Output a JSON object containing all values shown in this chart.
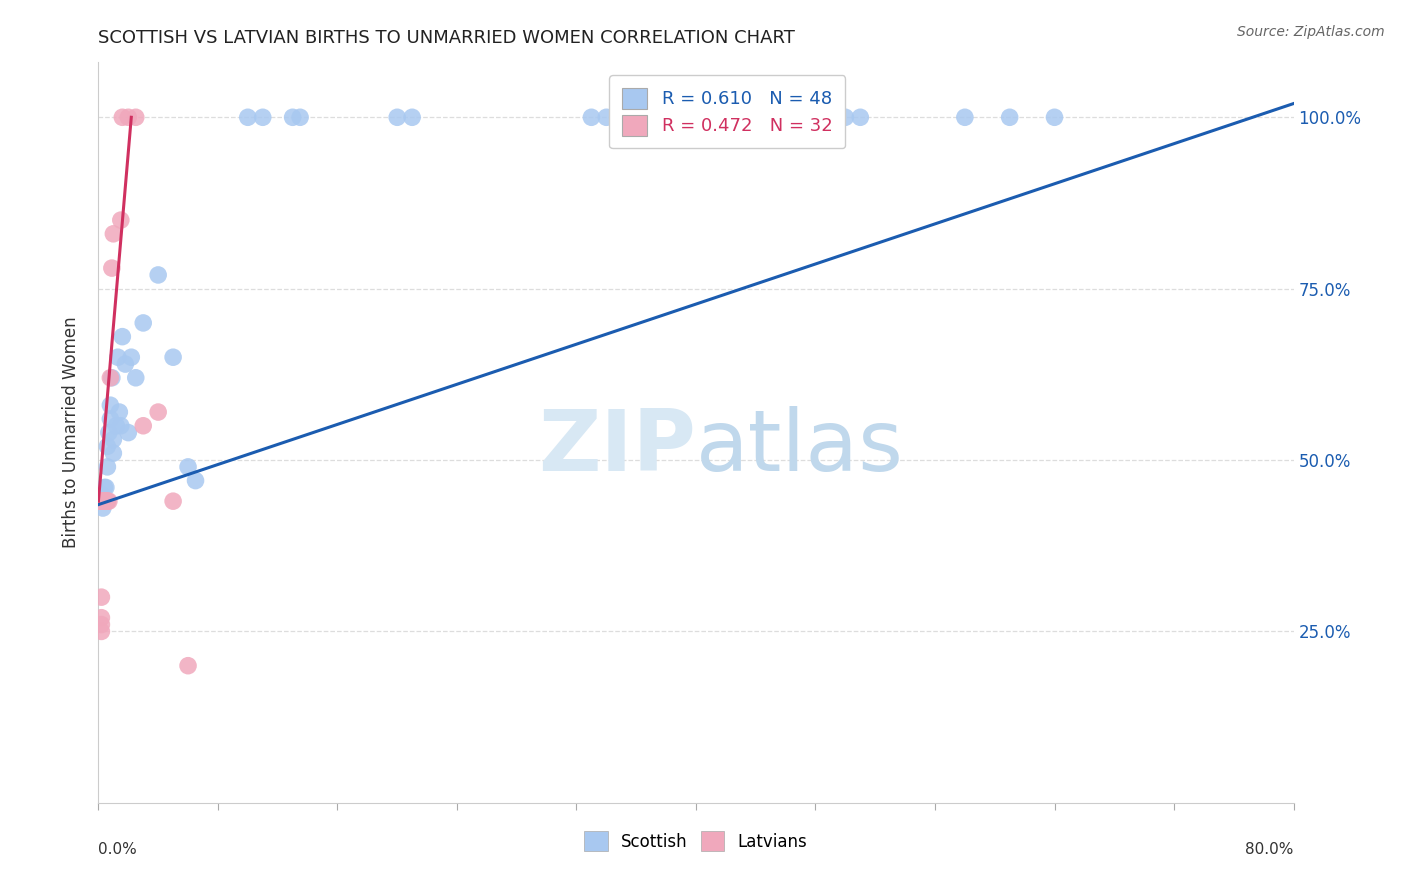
{
  "title": "SCOTTISH VS LATVIAN BIRTHS TO UNMARRIED WOMEN CORRELATION CHART",
  "source": "Source: ZipAtlas.com",
  "ylabel": "Births to Unmarried Women",
  "ytick_labels": [
    "100.0%",
    "75.0%",
    "50.0%",
    "25.0%"
  ],
  "ytick_values": [
    1.0,
    0.75,
    0.5,
    0.25
  ],
  "legend_labels": [
    "Scottish",
    "Latvians"
  ],
  "R_scottish": 0.61,
  "N_scottish": 48,
  "R_latvian": 0.472,
  "N_latvian": 32,
  "color_scottish": "#A8C8F0",
  "color_latvian": "#F0A8BC",
  "color_scottish_line": "#1B5CB0",
  "color_latvian_line": "#D03060",
  "background_color": "#FFFFFF",
  "grid_color": "#DDDDDD",
  "xlim": [
    0.0,
    0.8
  ],
  "ylim": [
    0.0,
    1.08
  ],
  "scottish_x": [
    0.001,
    0.001,
    0.002,
    0.002,
    0.002,
    0.003,
    0.003,
    0.003,
    0.004,
    0.004,
    0.005,
    0.005,
    0.006,
    0.006,
    0.007,
    0.008,
    0.008,
    0.009,
    0.01,
    0.01,
    0.012,
    0.013,
    0.014,
    0.015,
    0.016,
    0.018,
    0.02,
    0.022,
    0.025,
    0.03,
    0.04,
    0.05,
    0.06,
    0.065,
    0.1,
    0.11,
    0.13,
    0.135,
    0.2,
    0.21,
    0.33,
    0.34,
    0.49,
    0.5,
    0.51,
    0.58,
    0.61,
    0.64
  ],
  "scottish_y": [
    0.44,
    0.44,
    0.44,
    0.44,
    0.45,
    0.44,
    0.44,
    0.43,
    0.44,
    0.46,
    0.44,
    0.46,
    0.49,
    0.52,
    0.54,
    0.56,
    0.58,
    0.62,
    0.51,
    0.53,
    0.55,
    0.65,
    0.57,
    0.55,
    0.68,
    0.64,
    0.54,
    0.65,
    0.62,
    0.7,
    0.77,
    0.65,
    0.49,
    0.47,
    1.0,
    1.0,
    1.0,
    1.0,
    1.0,
    1.0,
    1.0,
    1.0,
    1.0,
    1.0,
    1.0,
    1.0,
    1.0,
    1.0
  ],
  "latvian_x": [
    0.001,
    0.001,
    0.001,
    0.001,
    0.002,
    0.002,
    0.002,
    0.002,
    0.003,
    0.003,
    0.003,
    0.003,
    0.004,
    0.004,
    0.004,
    0.005,
    0.005,
    0.005,
    0.006,
    0.006,
    0.007,
    0.008,
    0.009,
    0.01,
    0.015,
    0.016,
    0.02,
    0.025,
    0.03,
    0.04,
    0.05,
    0.06
  ],
  "latvian_y": [
    0.44,
    0.44,
    0.44,
    0.44,
    0.3,
    0.27,
    0.26,
    0.25,
    0.44,
    0.44,
    0.44,
    0.44,
    0.44,
    0.44,
    0.44,
    0.44,
    0.44,
    0.44,
    0.44,
    0.44,
    0.44,
    0.62,
    0.78,
    0.83,
    0.85,
    1.0,
    1.0,
    1.0,
    0.55,
    0.57,
    0.44,
    0.2
  ],
  "scottish_line_x": [
    0.0,
    0.8
  ],
  "scottish_line_y": [
    0.435,
    1.02
  ],
  "latvian_line_x": [
    0.0,
    0.022
  ],
  "latvian_line_y": [
    0.44,
    1.0
  ]
}
